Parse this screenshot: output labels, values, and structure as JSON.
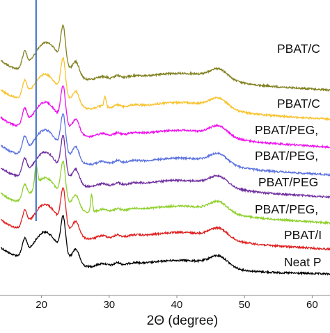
{
  "chart_data": {
    "type": "line",
    "title": "",
    "xlabel": "2Θ (degree)",
    "ylabel": "",
    "xlim": [
      14,
      68
    ],
    "x_ticks": [
      20,
      30,
      40,
      50,
      60
    ],
    "x_tick_labels": [
      "20",
      "30",
      "40",
      "50",
      "60"
    ],
    "y_axis_visible": false,
    "grid": false,
    "legend": "inline-right",
    "peaks_2theta": [
      17.5,
      20.3,
      23.2,
      25.1,
      46.2
    ],
    "reference_line_2theta": 19.2,
    "series": [
      {
        "name": "Neat P",
        "color": "#000000",
        "offset": 0
      },
      {
        "name": "PBAT/I",
        "color": "#e02020",
        "offset": 1
      },
      {
        "name": "PBAT/PEG,",
        "color": "#8ed02c",
        "offset": 2
      },
      {
        "name": "PBAT/PEG",
        "color": "#7030a0",
        "offset": 3
      },
      {
        "name": "PBAT/PEG,",
        "color": "#5b72e0",
        "offset": 4
      },
      {
        "name": "PBAT/PEG,",
        "color": "#ee10ee",
        "offset": 5
      },
      {
        "name": "PBAT/C",
        "color": "#f7c32e",
        "offset": 6
      },
      {
        "name": "PBAT/C",
        "color": "#808020",
        "offset": 7
      }
    ]
  }
}
